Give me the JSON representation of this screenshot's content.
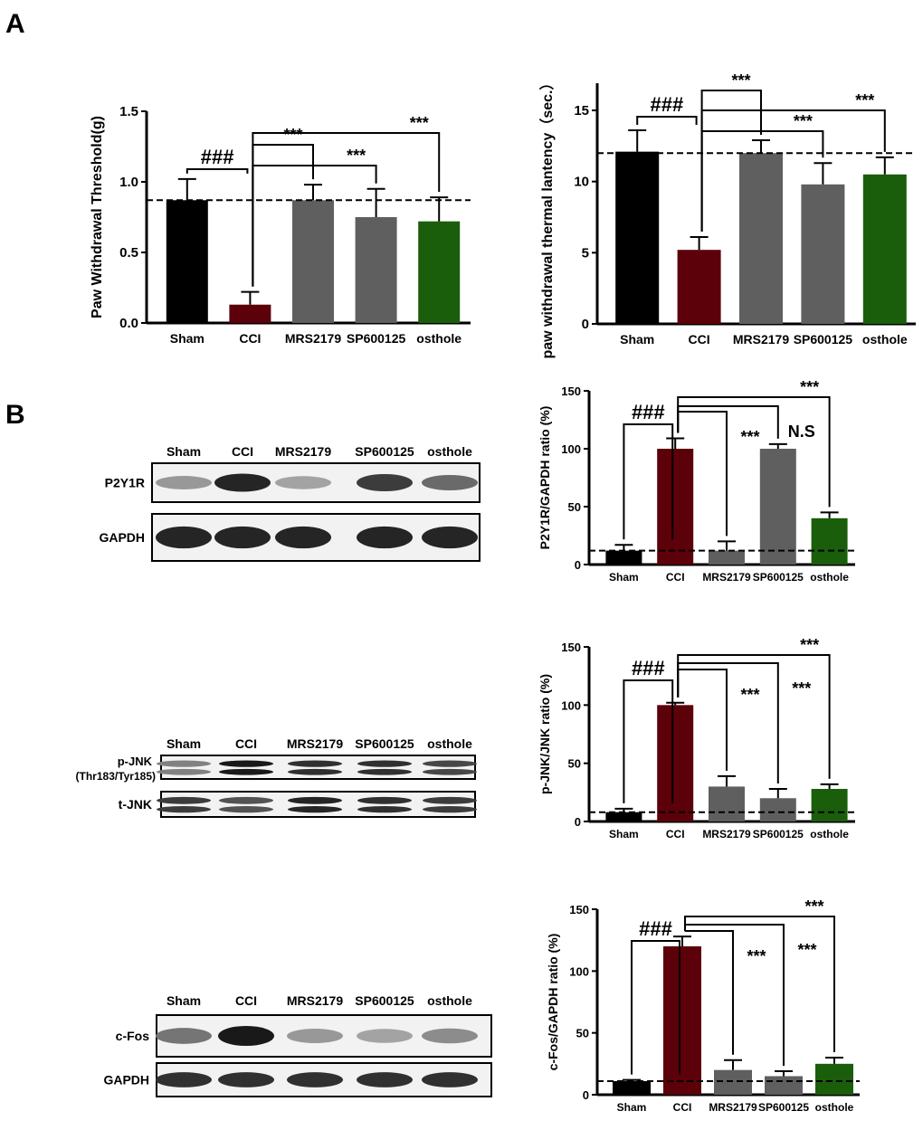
{
  "panel_labels": [
    "A",
    "B"
  ],
  "colors": {
    "Sham": "#000000",
    "CCI": "#5c0009",
    "MRS2179": "#5f5f5f",
    "SP600125": "#5f5f5f",
    "osthole": "#1a5e0c"
  },
  "chart_data": [
    {
      "type": "bar",
      "id": "pwt",
      "ylabel": "Paw Withdrawal Threshold(g)",
      "categories": [
        "Sham",
        "CCI",
        "MRS2179",
        "SP600125",
        "osthole"
      ],
      "values": [
        0.87,
        0.13,
        0.87,
        0.75,
        0.72
      ],
      "errors": [
        0.15,
        0.09,
        0.11,
        0.2,
        0.17
      ],
      "ylim": [
        0,
        1.5
      ],
      "ticks": [
        "0.0",
        "0.5",
        "1.0",
        "1.5"
      ],
      "tick_values": [
        0,
        0.5,
        1.0,
        1.5
      ],
      "reference_line": 0.87,
      "comparisons": [
        {
          "from": 0,
          "to": 1,
          "label": "###"
        },
        {
          "from": 1,
          "to": 2,
          "label": "***"
        },
        {
          "from": 1,
          "to": 3,
          "label": "***"
        },
        {
          "from": 1,
          "to": 4,
          "label": "***"
        }
      ]
    },
    {
      "type": "bar",
      "id": "pwl",
      "ylabel": "paw withdrawal thermal lantency（sec.）",
      "categories": [
        "Sham",
        "CCI",
        "MRS2179",
        "SP600125",
        "osthole"
      ],
      "values": [
        12.1,
        5.2,
        12.0,
        9.8,
        10.5
      ],
      "errors": [
        1.5,
        0.9,
        0.9,
        1.5,
        1.2
      ],
      "ylim": [
        0,
        15
      ],
      "ticks": [
        "0",
        "5",
        "10",
        "15"
      ],
      "tick_values": [
        0,
        5,
        10,
        15
      ],
      "reference_line": 12,
      "comparisons": [
        {
          "from": 0,
          "to": 1,
          "label": "###"
        },
        {
          "from": 1,
          "to": 2,
          "label": "***"
        },
        {
          "from": 1,
          "to": 3,
          "label": "***"
        },
        {
          "from": 1,
          "to": 4,
          "label": "***"
        }
      ]
    },
    {
      "type": "bar",
      "id": "p2y1r",
      "ylabel": "P2Y1R/GAPDH ratio (%)",
      "categories": [
        "Sham",
        "CCI",
        "MRS2179",
        "SP600125",
        "osthole"
      ],
      "values": [
        12,
        100,
        12,
        100,
        40
      ],
      "errors": [
        5,
        9,
        8,
        4,
        5
      ],
      "ylim": [
        0,
        150
      ],
      "ticks": [
        "0",
        "50",
        "100",
        "150"
      ],
      "tick_values": [
        0,
        50,
        100,
        150
      ],
      "reference_line": 12,
      "comparisons": [
        {
          "from": 0,
          "to": 1,
          "label": "###"
        },
        {
          "from": 1,
          "to": 2,
          "label": "***"
        },
        {
          "from": 1,
          "to": 3,
          "label": "N.S"
        },
        {
          "from": 1,
          "to": 4,
          "label": "***"
        }
      ]
    },
    {
      "type": "bar",
      "id": "pjnk",
      "ylabel": "p-JNK/JNK ratio (%)",
      "categories": [
        "Sham",
        "CCI",
        "MRS2179",
        "SP600125",
        "osthole"
      ],
      "values": [
        8,
        100,
        30,
        20,
        28
      ],
      "errors": [
        3,
        2,
        9,
        8,
        4
      ],
      "ylim": [
        0,
        150
      ],
      "ticks": [
        "0",
        "50",
        "100",
        "150"
      ],
      "tick_values": [
        0,
        50,
        100,
        150
      ],
      "reference_line": 8,
      "comparisons": [
        {
          "from": 0,
          "to": 1,
          "label": "###"
        },
        {
          "from": 1,
          "to": 2,
          "label": "***"
        },
        {
          "from": 1,
          "to": 3,
          "label": "***"
        },
        {
          "from": 1,
          "to": 4,
          "label": "***"
        }
      ]
    },
    {
      "type": "bar",
      "id": "cfos",
      "ylabel": "c-Fos/GAPDH ratio (%)",
      "categories": [
        "Sham",
        "CCI",
        "MRS2179",
        "SP600125",
        "osthole"
      ],
      "values": [
        11,
        120,
        20,
        15,
        25
      ],
      "errors": [
        1,
        8,
        8,
        4,
        5
      ],
      "ylim": [
        0,
        150
      ],
      "ticks": [
        "0",
        "50",
        "100",
        "150"
      ],
      "tick_values": [
        0,
        50,
        100,
        150
      ],
      "reference_line": 11,
      "comparisons": [
        {
          "from": 0,
          "to": 1,
          "label": "###"
        },
        {
          "from": 1,
          "to": 2,
          "label": "***"
        },
        {
          "from": 1,
          "to": 3,
          "label": "***"
        },
        {
          "from": 1,
          "to": 4,
          "label": "***"
        }
      ]
    }
  ],
  "blots": [
    {
      "lanes": [
        "Sham",
        "CCI",
        "MRS2179",
        "SP600125",
        "osthole"
      ],
      "rows": [
        {
          "label": "P2Y1R",
          "intensity": [
            0.45,
            0.95,
            0.4,
            0.85,
            0.65
          ]
        },
        {
          "label": "GAPDH",
          "intensity": [
            0.95,
            0.95,
            0.95,
            0.95,
            0.95
          ]
        }
      ]
    },
    {
      "lanes": [
        "Sham",
        "CCI",
        "MRS2179",
        "SP600125",
        "osthole"
      ],
      "rows": [
        {
          "label": "p-JNK\n(Thr183/Tyr185)",
          "label1": "p-JNK",
          "label2": "(Thr183/Tyr185)",
          "intensity": [
            0.55,
            1,
            0.9,
            0.9,
            0.8
          ]
        },
        {
          "label": "t-JNK",
          "intensity": [
            0.85,
            0.75,
            0.95,
            0.9,
            0.85
          ]
        }
      ]
    },
    {
      "lanes": [
        "Sham",
        "CCI",
        "MRS2179",
        "SP600125",
        "osthole"
      ],
      "rows": [
        {
          "label": "c-Fos",
          "intensity": [
            0.6,
            1,
            0.45,
            0.4,
            0.5
          ]
        },
        {
          "label": "GAPDH",
          "intensity": [
            0.9,
            0.9,
            0.9,
            0.9,
            0.9
          ]
        }
      ]
    }
  ]
}
